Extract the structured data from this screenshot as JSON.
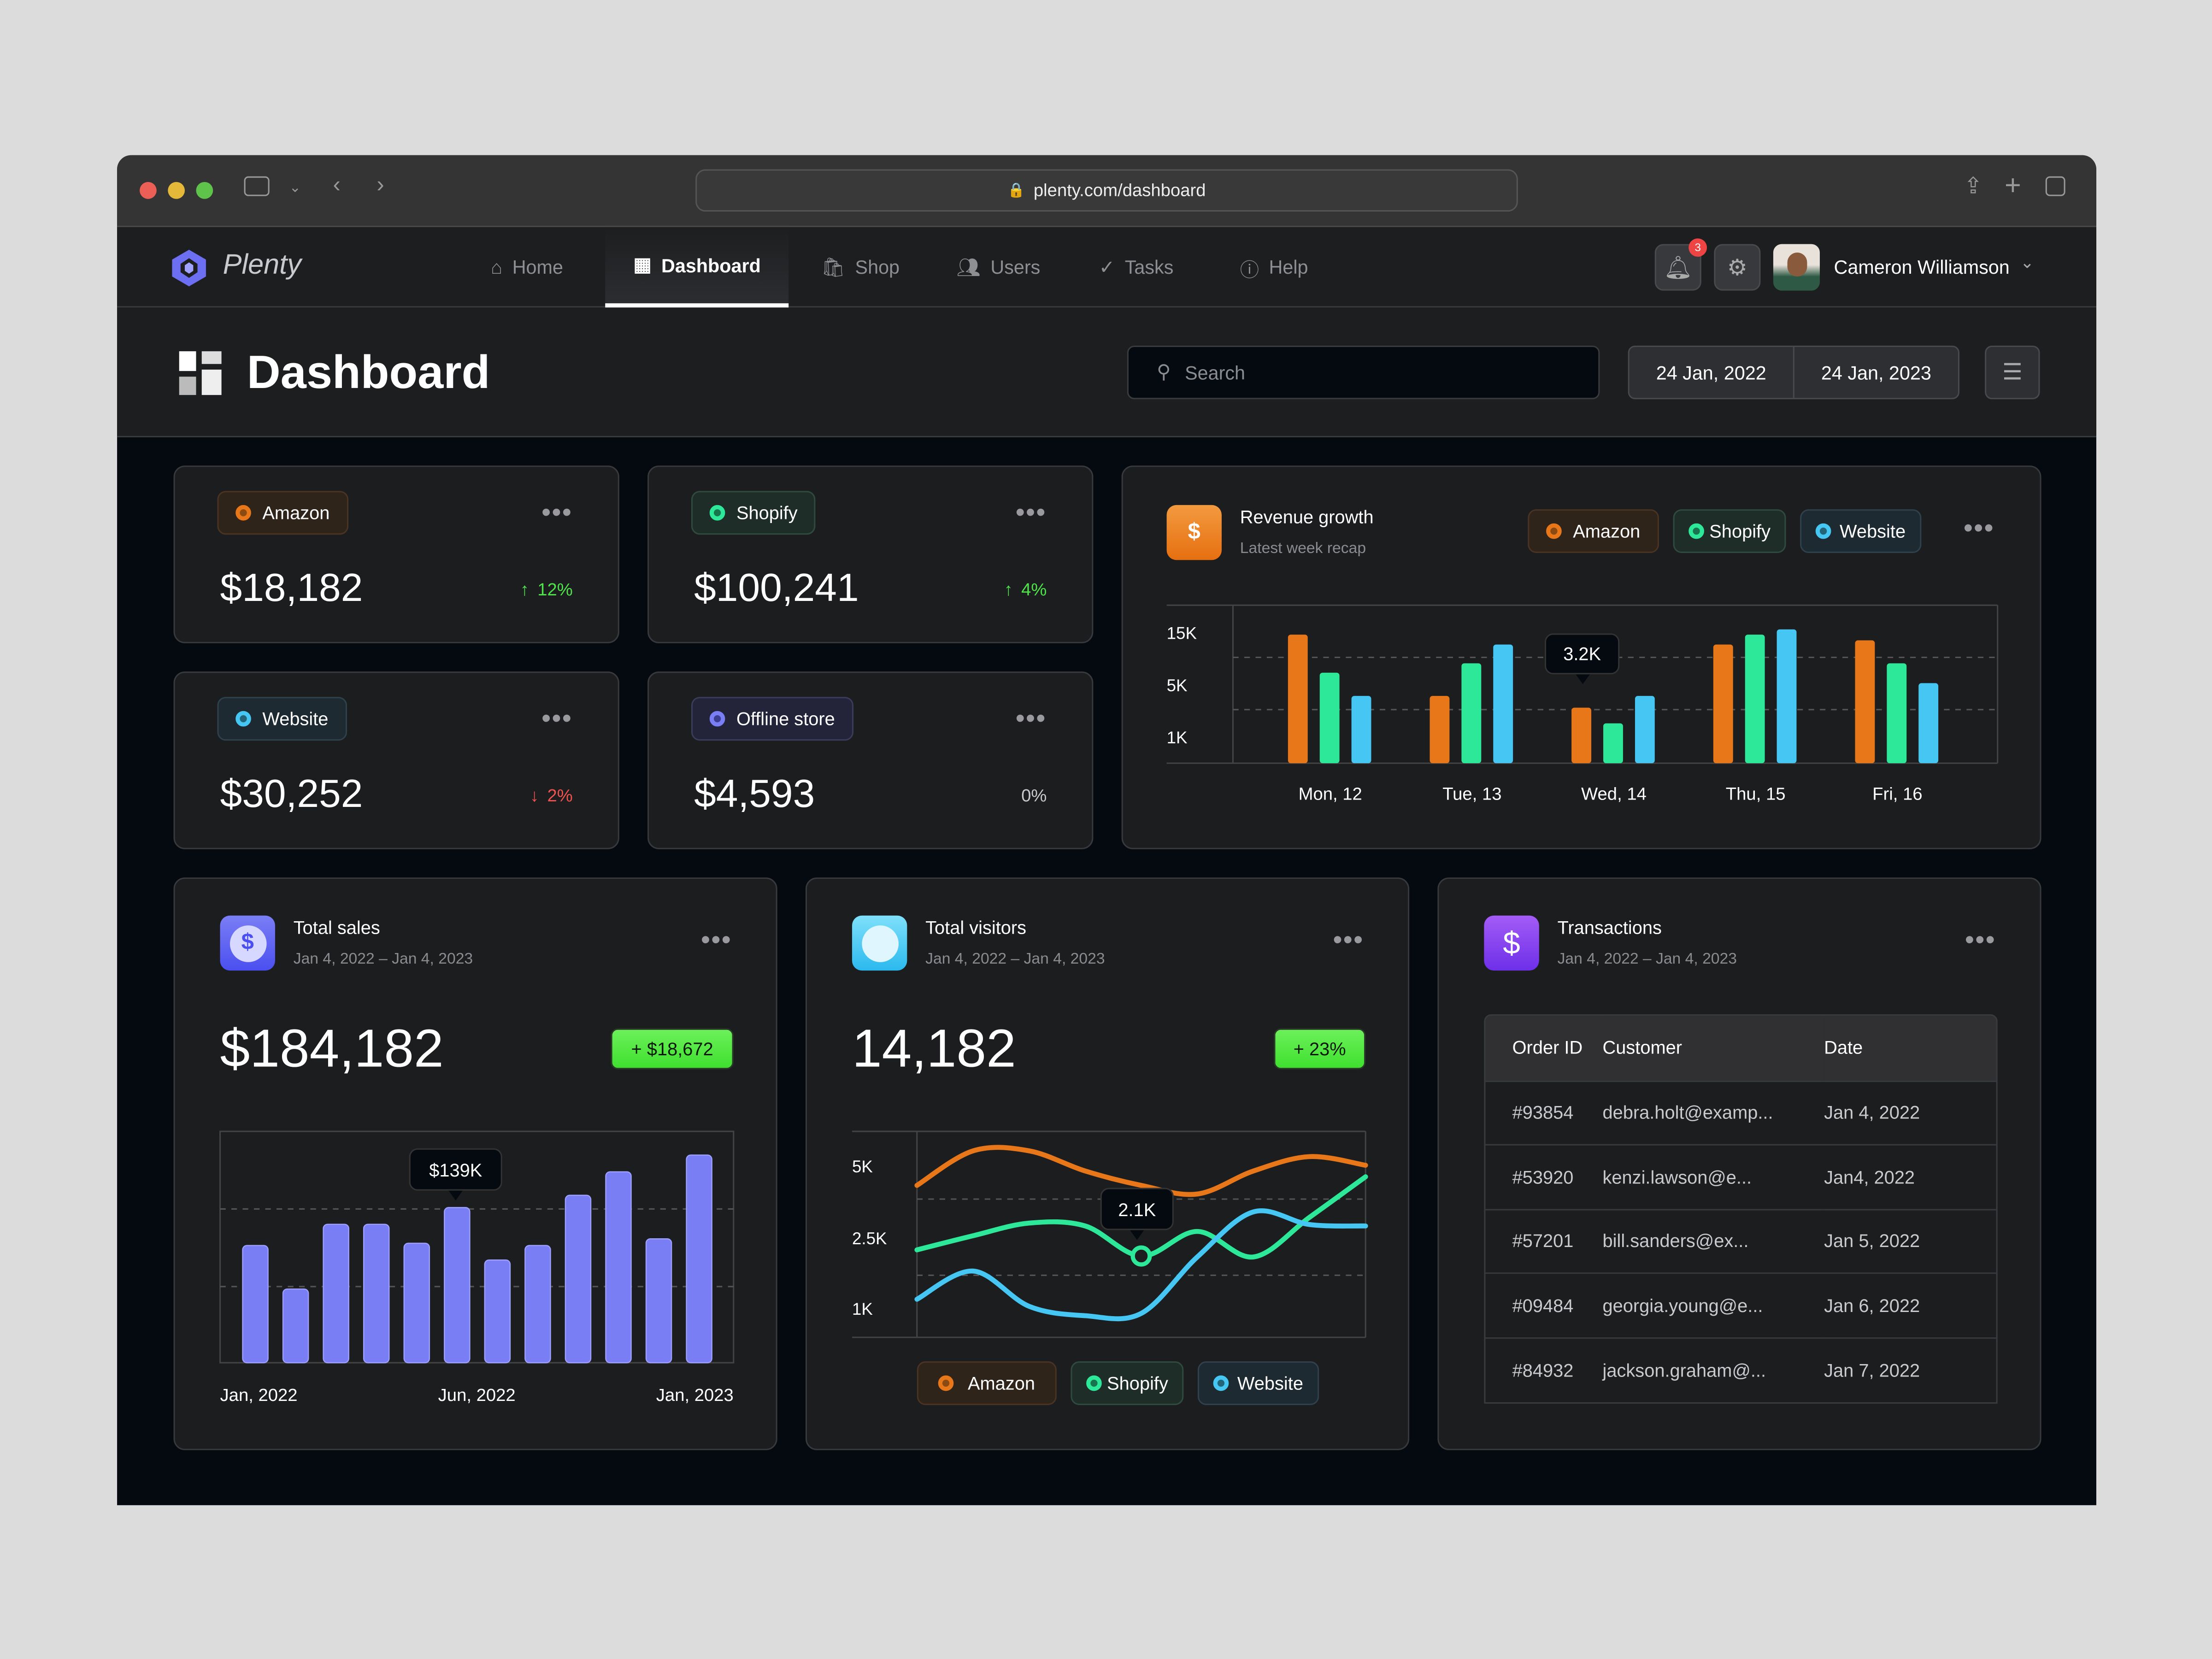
{
  "browser": {
    "url": "plenty.com/dashboard"
  },
  "nav": {
    "brand": "Plenty",
    "items": [
      {
        "label": "Home",
        "icon": "home-icon"
      },
      {
        "label": "Dashboard",
        "icon": "dashboard-icon",
        "active": true
      },
      {
        "label": "Shop",
        "icon": "shopping-bag-icon"
      },
      {
        "label": "Users",
        "icon": "users-icon"
      },
      {
        "label": "Tasks",
        "icon": "tasks-icon"
      },
      {
        "label": "Help",
        "icon": "help-icon"
      }
    ],
    "notifications": "3",
    "user": "Cameron Williamson"
  },
  "header": {
    "title": "Dashboard",
    "search_placeholder": "Search",
    "date_from": "24 Jan, 2022",
    "date_to": "24 Jan, 2023"
  },
  "colors": {
    "amazon": "#e8771a",
    "shopify": "#2ee89a",
    "website": "#46c6f2",
    "sales": "#7a7ef5"
  },
  "stats": [
    {
      "name": "Amazon",
      "value": "$18,182",
      "change": "12%",
      "direction": "up"
    },
    {
      "name": "Shopify",
      "value": "$100,241",
      "change": "4%",
      "direction": "up"
    },
    {
      "name": "Website",
      "value": "$30,252",
      "change": "2%",
      "direction": "down"
    },
    {
      "name": "Offline store",
      "value": "$4,593",
      "change": "0%",
      "direction": "flat"
    }
  ],
  "revenue": {
    "title": "Revenue growth",
    "subtitle": "Latest week recap",
    "legend": [
      "Amazon",
      "Shopify",
      "Website"
    ],
    "tooltip": "3.2K"
  },
  "sales": {
    "title": "Total sales",
    "range": "Jan 4, 2022 – Jan 4, 2023",
    "value": "$184,182",
    "badge": "+ $18,672",
    "tooltip": "$139K"
  },
  "visitors": {
    "title": "Total visitors",
    "range": "Jan 4, 2022 – Jan 4, 2023",
    "value": "14,182",
    "badge": "+ 23%",
    "tooltip": "2.1K",
    "legend": [
      "Amazon",
      "Shopify",
      "Website"
    ]
  },
  "transactions": {
    "title": "Transactions",
    "range": "Jan 4, 2022 – Jan 4, 2023",
    "columns": [
      "Order ID",
      "Customer",
      "Date"
    ],
    "rows": [
      [
        "#93854",
        "debra.holt@examp...",
        "Jan 4, 2022"
      ],
      [
        "#53920",
        "kenzi.lawson@e...",
        "Jan4, 2022"
      ],
      [
        "#57201",
        "bill.sanders@ex...",
        "Jan 5, 2022"
      ],
      [
        "#09484",
        "georgia.young@e...",
        "Jan 6, 2022"
      ],
      [
        "#84932",
        "jackson.graham@...",
        "Jan 7, 2022"
      ]
    ]
  },
  "chart_data": [
    {
      "type": "bar",
      "title": "Revenue growth",
      "categories": [
        "Mon, 12",
        "Tue, 13",
        "Wed, 14",
        "Thu, 15",
        "Fri, 16"
      ],
      "yticks": [
        "15K",
        "5K",
        "1K"
      ],
      "grid": true,
      "legend": "top-right",
      "series": [
        {
          "name": "Amazon",
          "values": [
            14500,
            4100,
            3200,
            12600,
            13400
          ]
        },
        {
          "name": "Shopify",
          "values": [
            7200,
            9000,
            2000,
            14500,
            9000
          ]
        },
        {
          "name": "Website",
          "values": [
            4100,
            12600,
            4100,
            15500,
            5200
          ]
        }
      ]
    },
    {
      "type": "bar",
      "title": "Total sales",
      "xticks": [
        "Jan, 2022",
        "Jun, 2022",
        "Jan, 2023"
      ],
      "values_k": [
        105,
        66,
        124,
        124,
        107,
        139,
        92,
        105,
        150,
        171,
        111,
        186
      ],
      "grid": true
    },
    {
      "type": "line",
      "title": "Total visitors",
      "yticks": [
        "5K",
        "2.5K",
        "1K"
      ],
      "legend": "bottom",
      "grid": true,
      "series": [
        {
          "name": "Amazon",
          "values": [
            4300,
            5500,
            5500,
            4800,
            4300,
            4000,
            4800,
            5300,
            5000
          ]
        },
        {
          "name": "Shopify",
          "values": [
            2230,
            2550,
            2990,
            2890,
            2100,
            2700,
            2080,
            3190,
            4600
          ]
        },
        {
          "name": "Website",
          "values": [
            1180,
            1780,
            1030,
            830,
            880,
            2080,
            3380,
            2940,
            2890
          ]
        }
      ]
    }
  ]
}
